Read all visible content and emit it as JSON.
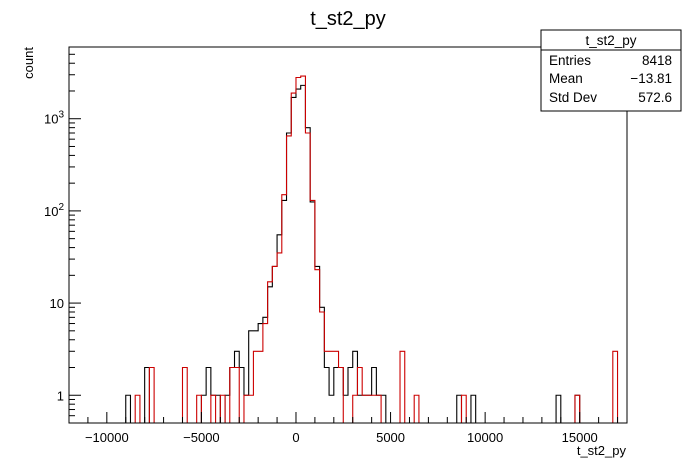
{
  "chart_data": {
    "type": "histogram",
    "title": "t_st2_py",
    "xlabel": "t_st2_py",
    "ylabel": "count",
    "xlim": [
      -12000,
      17500
    ],
    "ylim": [
      0.5,
      6000
    ],
    "yscale": "log",
    "bin_width": 250,
    "x_ticks": [
      {
        "value": -10000,
        "label": "−10000"
      },
      {
        "value": -5000,
        "label": "−5000"
      },
      {
        "value": 0,
        "label": "0"
      },
      {
        "value": 5000,
        "label": "5000"
      },
      {
        "value": 10000,
        "label": "10000"
      },
      {
        "value": 15000,
        "label": "15000"
      }
    ],
    "y_ticks": [
      {
        "value": 1,
        "label": "1"
      },
      {
        "value": 10,
        "label": "10"
      },
      {
        "value": 100,
        "label": "10",
        "exp": "2"
      },
      {
        "value": 1000,
        "label": "10",
        "exp": "3"
      }
    ],
    "stats_box": {
      "title": "t_st2_py",
      "rows": [
        {
          "label": "Entries",
          "value": "8418"
        },
        {
          "label": "Mean",
          "value": "−13.81"
        },
        {
          "label": "Std Dev",
          "value": "572.6"
        }
      ]
    },
    "series": [
      {
        "color": "#000000",
        "bins": [
          [
            -9000,
            1
          ],
          [
            -8000,
            2
          ],
          [
            -5000,
            1
          ],
          [
            -4750,
            2
          ],
          [
            -4500,
            1
          ],
          [
            -4250,
            1
          ],
          [
            -3750,
            1
          ],
          [
            -3500,
            2
          ],
          [
            -3250,
            3
          ],
          [
            -3000,
            2
          ],
          [
            -2750,
            1
          ],
          [
            -2500,
            5
          ],
          [
            -2250,
            5
          ],
          [
            -2000,
            6
          ],
          [
            -1750,
            7
          ],
          [
            -1500,
            15
          ],
          [
            -1250,
            25
          ],
          [
            -1000,
            55
          ],
          [
            -750,
            130
          ],
          [
            -500,
            700
          ],
          [
            -250,
            1700
          ],
          [
            0,
            2100
          ],
          [
            250,
            2300
          ],
          [
            500,
            800
          ],
          [
            750,
            125
          ],
          [
            1000,
            25
          ],
          [
            1250,
            9
          ],
          [
            1500,
            2
          ],
          [
            1750,
            1
          ],
          [
            2000,
            2
          ],
          [
            2250,
            2
          ],
          [
            2500,
            1
          ],
          [
            2750,
            2
          ],
          [
            3000,
            3
          ],
          [
            3250,
            1
          ],
          [
            3500,
            1
          ],
          [
            3750,
            1
          ],
          [
            4000,
            2
          ],
          [
            4250,
            1
          ],
          [
            4500,
            1
          ],
          [
            8500,
            1
          ],
          [
            9250,
            1
          ],
          [
            13750,
            1
          ],
          [
            14750,
            1
          ]
        ]
      },
      {
        "color": "#cc0000",
        "bins": [
          [
            -8500,
            1
          ],
          [
            -7750,
            2
          ],
          [
            -6000,
            2
          ],
          [
            -5250,
            1
          ],
          [
            -4500,
            1
          ],
          [
            -4000,
            1
          ],
          [
            -3500,
            2
          ],
          [
            -3250,
            2
          ],
          [
            -2750,
            1
          ],
          [
            -2500,
            1
          ],
          [
            -2250,
            3
          ],
          [
            -2000,
            3
          ],
          [
            -1750,
            6
          ],
          [
            -1500,
            17
          ],
          [
            -1250,
            25
          ],
          [
            -1000,
            35
          ],
          [
            -750,
            150
          ],
          [
            -500,
            650
          ],
          [
            -250,
            1900
          ],
          [
            0,
            2800
          ],
          [
            250,
            2900
          ],
          [
            500,
            700
          ],
          [
            750,
            130
          ],
          [
            1000,
            23
          ],
          [
            1250,
            8
          ],
          [
            1500,
            3
          ],
          [
            1750,
            3
          ],
          [
            2000,
            3
          ],
          [
            2250,
            2
          ],
          [
            3000,
            1
          ],
          [
            3250,
            2
          ],
          [
            3500,
            1
          ],
          [
            3750,
            1
          ],
          [
            4000,
            1
          ],
          [
            4250,
            1
          ],
          [
            5500,
            3
          ],
          [
            6250,
            1
          ],
          [
            8750,
            1
          ],
          [
            14750,
            1
          ],
          [
            16750,
            3
          ]
        ]
      }
    ]
  }
}
